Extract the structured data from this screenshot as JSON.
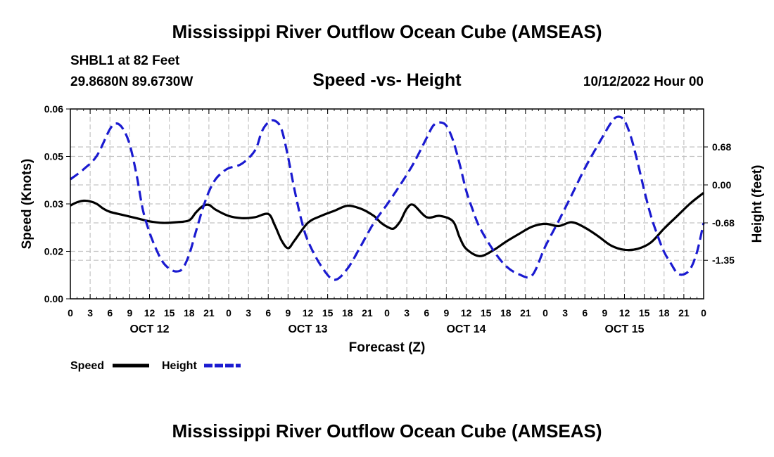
{
  "header": {
    "main_title": "Mississippi River Outflow Ocean Cube (AMSEAS)",
    "station": "SHBL1 at 82 Feet",
    "coords": "29.8680N  89.6730W",
    "plot_title": "Speed -vs- Height",
    "date": "10/12/2022 Hour 00",
    "repeat_title": "Mississippi River Outflow Ocean Cube (AMSEAS)"
  },
  "chart_data": {
    "type": "line",
    "title": "Speed -vs- Height",
    "xlabel": "Forecast (Z)",
    "ylabel": "Speed (Knots)",
    "y2label": "Height (feet)",
    "x_range_hours": [
      0,
      96
    ],
    "ylim": [
      0,
      0.06
    ],
    "y2lim": [
      -2.04,
      1.36
    ],
    "hour_ticks": [
      "0",
      "3",
      "6",
      "9",
      "12",
      "15",
      "18",
      "21",
      "0",
      "3",
      "6",
      "9",
      "12",
      "15",
      "18",
      "21",
      "0",
      "3",
      "6",
      "9",
      "12",
      "15",
      "18",
      "21",
      "0",
      "3",
      "6",
      "9",
      "12",
      "15",
      "18",
      "21",
      "0"
    ],
    "day_labels": [
      {
        "hour": 12,
        "label": "OCT 12"
      },
      {
        "hour": 36,
        "label": "OCT 13"
      },
      {
        "hour": 60,
        "label": "OCT 14"
      },
      {
        "hour": 84,
        "label": "OCT 15"
      }
    ],
    "y_ticks": [
      "0.00",
      "0.02",
      "0.03",
      "0.05",
      "0.06"
    ],
    "y_tick_values": [
      0.0,
      0.015,
      0.03,
      0.045,
      0.06
    ],
    "y_tick_display_values": [
      0.0,
      0.02,
      0.03,
      0.05,
      0.06
    ],
    "y2_ticks": [
      "0.68",
      "0.00",
      "-0.68",
      "-1.35"
    ],
    "y2_tick_values": [
      0.68,
      0.0,
      -0.68,
      -1.35
    ],
    "series": [
      {
        "name": "Speed",
        "color": "#000000",
        "dash": "solid",
        "axis": "left",
        "x": [
          0,
          1,
          2,
          3,
          4,
          5,
          6,
          8,
          10,
          12,
          14,
          16,
          18,
          19,
          20,
          21,
          22,
          24,
          26,
          28,
          30,
          31,
          32,
          33,
          34,
          36,
          38,
          40,
          42,
          44,
          46,
          47,
          48,
          49,
          50,
          51,
          52,
          54,
          56,
          58,
          59,
          60,
          62,
          64,
          66,
          68,
          70,
          72,
          74,
          76,
          78,
          80,
          82,
          84,
          86,
          88,
          90,
          92,
          94,
          96
        ],
        "y": [
          0.0295,
          0.0305,
          0.031,
          0.0308,
          0.03,
          0.0285,
          0.0275,
          0.0265,
          0.0255,
          0.0245,
          0.024,
          0.0242,
          0.0248,
          0.0272,
          0.0292,
          0.0297,
          0.0282,
          0.0262,
          0.0255,
          0.0258,
          0.0268,
          0.0232,
          0.0185,
          0.016,
          0.0185,
          0.024,
          0.0262,
          0.0278,
          0.0294,
          0.0285,
          0.0262,
          0.0242,
          0.0228,
          0.0222,
          0.0245,
          0.0285,
          0.0297,
          0.0258,
          0.0262,
          0.0245,
          0.0195,
          0.0158,
          0.0135,
          0.0152,
          0.018,
          0.0205,
          0.0228,
          0.0237,
          0.023,
          0.0242,
          0.0225,
          0.0198,
          0.0168,
          0.0155,
          0.0158,
          0.0178,
          0.0222,
          0.0262,
          0.0302,
          0.0335
        ]
      },
      {
        "name": "Height",
        "color": "#1a1ad0",
        "dash": "dashed",
        "axis": "right",
        "x": [
          0,
          2,
          4,
          6,
          7,
          8,
          9,
          10,
          11,
          12,
          13,
          14,
          15,
          16,
          17,
          18,
          19,
          20,
          21,
          22,
          23,
          24,
          26,
          28,
          29,
          30,
          31,
          32,
          33,
          34,
          35,
          36,
          38,
          40,
          42,
          44,
          46,
          48,
          50,
          52,
          54,
          55,
          56,
          57,
          58,
          59,
          60,
          61,
          62,
          64,
          66,
          68,
          70,
          72,
          74,
          76,
          78,
          80,
          82,
          83,
          84,
          85,
          86,
          87,
          88,
          89,
          90,
          91,
          92,
          93,
          94,
          95,
          96
        ],
        "y": [
          0.1,
          0.28,
          0.52,
          1.0,
          1.1,
          1.0,
          0.72,
          0.2,
          -0.45,
          -0.85,
          -1.15,
          -1.38,
          -1.5,
          -1.55,
          -1.5,
          -1.25,
          -0.85,
          -0.45,
          -0.12,
          0.1,
          0.22,
          0.3,
          0.38,
          0.62,
          0.95,
          1.12,
          1.15,
          1.0,
          0.5,
          -0.1,
          -0.62,
          -1.0,
          -1.45,
          -1.7,
          -1.5,
          -1.1,
          -0.68,
          -0.35,
          0.0,
          0.38,
          0.84,
          1.06,
          1.12,
          1.06,
          0.8,
          0.38,
          -0.1,
          -0.45,
          -0.75,
          -1.15,
          -1.45,
          -1.6,
          -1.62,
          -1.1,
          -0.65,
          -0.18,
          0.3,
          0.72,
          1.12,
          1.22,
          1.15,
          0.85,
          0.4,
          -0.1,
          -0.55,
          -0.9,
          -1.2,
          -1.4,
          -1.58,
          -1.6,
          -1.5,
          -1.2,
          -0.68
        ]
      }
    ],
    "legend": [
      {
        "label": "Speed",
        "color": "#000000",
        "dash": "solid"
      },
      {
        "label": "Height",
        "color": "#1a1ad0",
        "dash": "dashed"
      }
    ],
    "legend_position": "bottom-left",
    "grid": true
  }
}
